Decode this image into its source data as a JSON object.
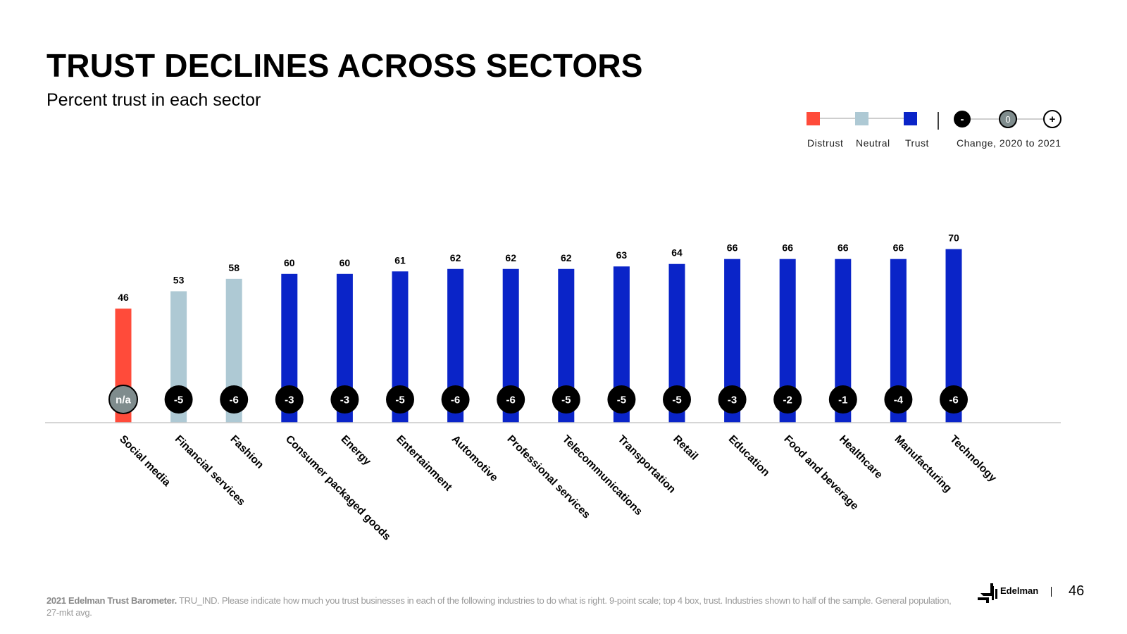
{
  "header": {
    "title": "TRUST DECLINES ACROSS SECTORS",
    "subtitle": "Percent trust in each sector"
  },
  "legend": {
    "distrust_label": "Distrust",
    "neutral_label": "Neutral",
    "trust_label": "Trust",
    "change_minus": "-",
    "change_zero": "0",
    "change_plus": "+",
    "change_label": "Change, 2020 to 2021"
  },
  "colors": {
    "distrust": "#FF4B3A",
    "neutral": "#AEC9D4",
    "trust": "#0A24C8",
    "change_circle": "#000000",
    "na_circle": "#7F8C8D",
    "baseline": "#C8C8C8"
  },
  "chart_data": {
    "type": "bar",
    "title": "TRUST DECLINES ACROSS SECTORS",
    "subtitle": "Percent trust in each sector",
    "xlabel": "",
    "ylabel": "",
    "ylim": [
      0,
      100
    ],
    "grid": false,
    "legend_position": "top-right",
    "categories": [
      "Social media",
      "Financial services",
      "Fashion",
      "Consumer packaged goods",
      "Energy",
      "Entertainment",
      "Automotive",
      "Professional services",
      "Telecommunications",
      "Transportation",
      "Retail",
      "Education",
      "Food and beverage",
      "Healthcare",
      "Manufacturing",
      "Technology"
    ],
    "values": [
      46,
      53,
      58,
      60,
      60,
      61,
      62,
      62,
      62,
      63,
      64,
      66,
      66,
      66,
      66,
      70
    ],
    "trust_level": [
      "distrust",
      "neutral",
      "neutral",
      "trust",
      "trust",
      "trust",
      "trust",
      "trust",
      "trust",
      "trust",
      "trust",
      "trust",
      "trust",
      "trust",
      "trust",
      "trust"
    ],
    "change_2020_to_2021": [
      "n/a",
      "-5",
      "-6",
      "-3",
      "-3",
      "-5",
      "-6",
      "-6",
      "-5",
      "-5",
      "-5",
      "-3",
      "-2",
      "-1",
      "-4",
      "-6"
    ]
  },
  "footer": {
    "source_bold": "2021 Edelman Trust Barometer.",
    "source_text": " TRU_IND. Please indicate how much you trust businesses in each of the following industries to do what is right. 9-point scale; top 4 box, trust. Industries shown to half of the sample. General population, 27-mkt avg.",
    "logo_text": "Edelman",
    "page_number": "46"
  }
}
